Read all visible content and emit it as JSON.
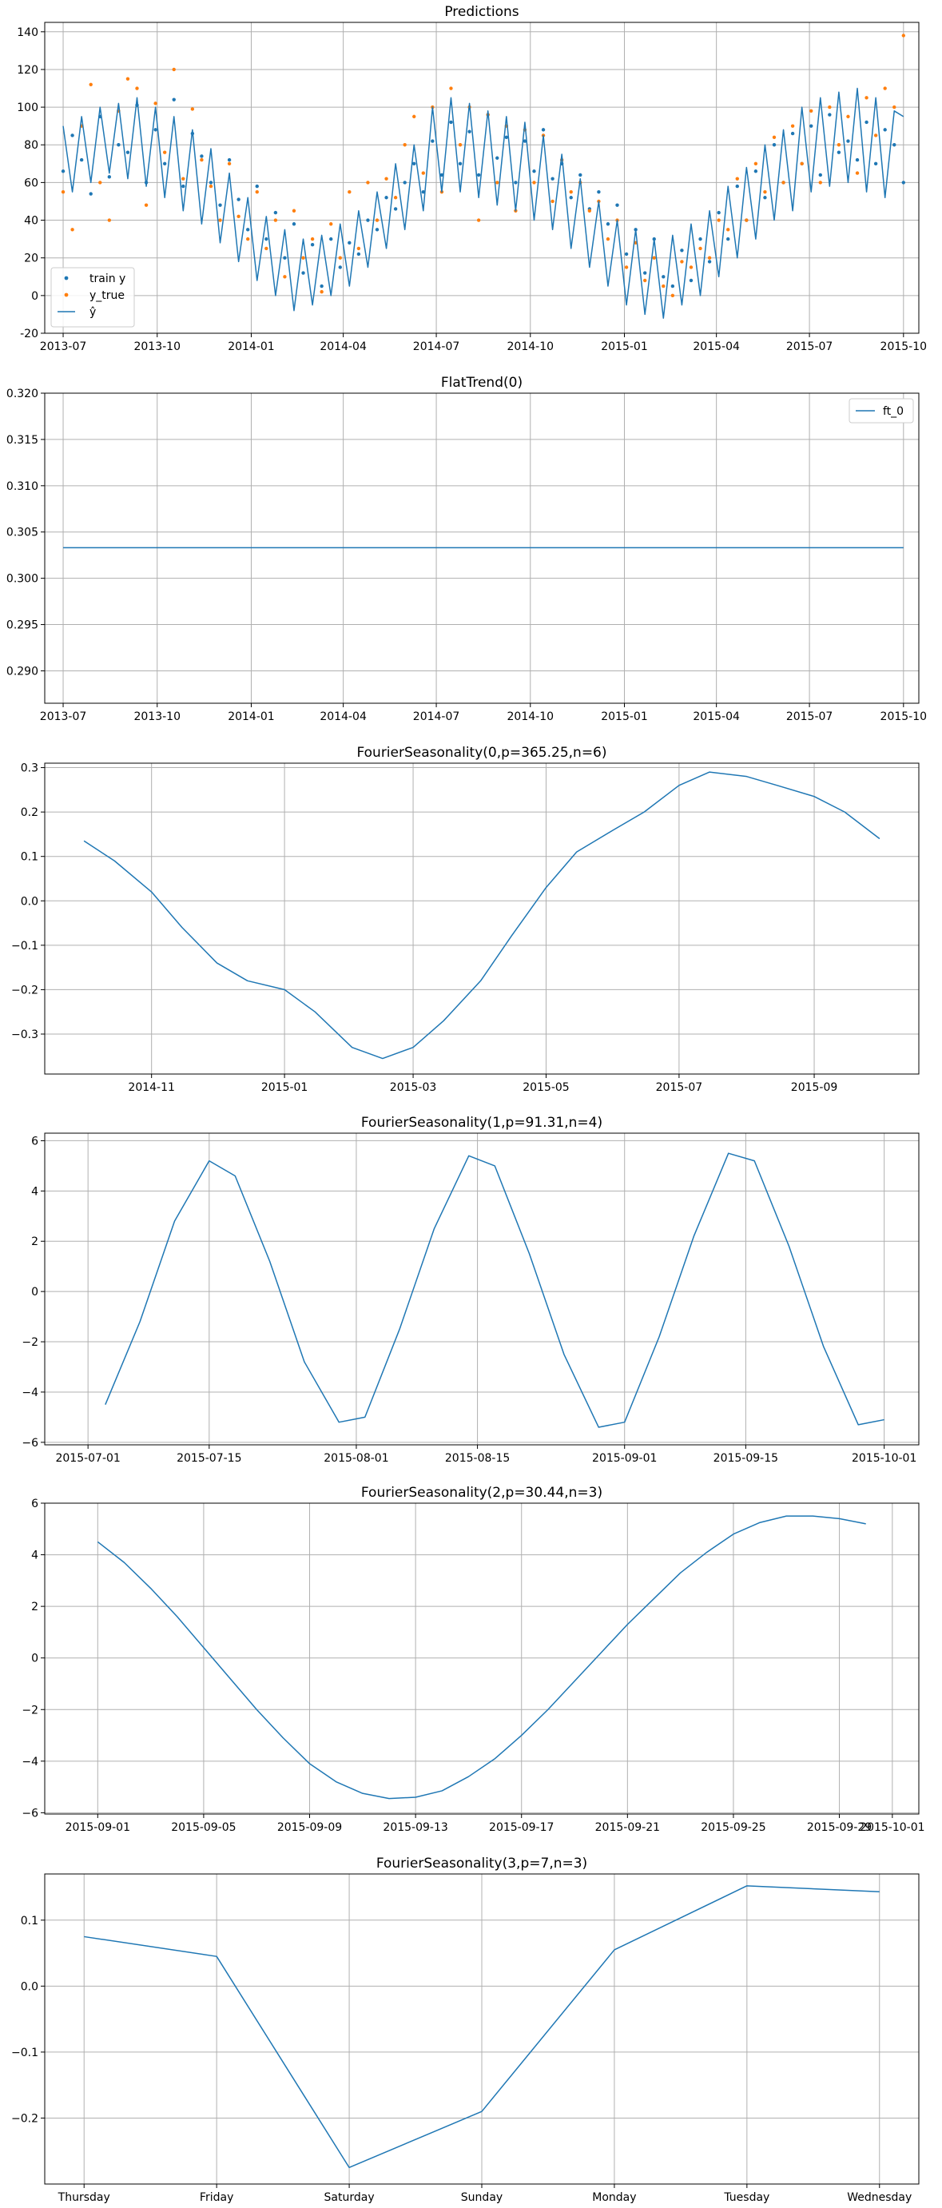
{
  "colors": {
    "line": "#1f77b4",
    "scatter_true": "#ff7f0e",
    "grid": "#b0b0b0",
    "axes": "#000000"
  },
  "chart_data": [
    {
      "type": "scatter",
      "title": "Predictions",
      "x_type": "date",
      "x_range": [
        "2013-06-13",
        "2015-10-16"
      ],
      "xticks": [
        "2013-07",
        "2013-10",
        "2014-01",
        "2014-04",
        "2014-07",
        "2014-10",
        "2015-01",
        "2015-04",
        "2015-07",
        "2015-10"
      ],
      "ylim": [
        -20,
        145
      ],
      "yticks": [
        -20,
        0,
        20,
        40,
        60,
        80,
        100,
        120,
        140
      ],
      "grid": true,
      "legend": "bottom-left",
      "series": [
        {
          "name": "train y",
          "kind": "points",
          "color": "#1f77b4",
          "x_start": "2013-07-01",
          "x_end": "2015-10-01",
          "y": [
            66,
            85,
            72,
            54,
            95,
            63,
            80,
            76,
            101,
            60,
            88,
            70,
            104,
            58,
            86,
            74,
            60,
            48,
            72,
            51,
            35,
            58,
            30,
            44,
            20,
            38,
            12,
            27,
            5,
            30,
            15,
            28,
            22,
            40,
            35,
            52,
            46,
            60,
            70,
            55,
            82,
            64,
            92,
            70,
            87,
            64,
            96,
            73,
            84,
            60,
            82,
            66,
            88,
            62,
            70,
            52,
            64,
            46,
            55,
            38,
            48,
            22,
            35,
            12,
            30,
            10,
            5,
            24,
            8,
            30,
            18,
            44,
            30,
            58,
            40,
            66,
            52,
            80,
            60,
            86,
            70,
            90,
            64,
            96,
            76,
            82,
            72,
            92,
            70,
            88,
            80,
            60
          ]
        },
        {
          "name": "y_true",
          "kind": "points",
          "color": "#ff7f0e",
          "x_start": "2013-07-01",
          "x_end": "2015-10-01",
          "y": [
            55,
            35,
            90,
            112,
            60,
            40,
            98,
            115,
            110,
            48,
            102,
            76,
            120,
            62,
            99,
            72,
            58,
            40,
            70,
            42,
            30,
            55,
            25,
            40,
            10,
            45,
            20,
            30,
            2,
            38,
            20,
            55,
            25,
            60,
            40,
            62,
            52,
            80,
            95,
            65,
            100,
            55,
            110,
            80,
            100,
            40,
            96,
            60,
            90,
            45,
            88,
            60,
            85,
            50,
            72,
            55,
            60,
            45,
            50,
            30,
            40,
            15,
            28,
            8,
            20,
            5,
            0,
            18,
            15,
            25,
            20,
            40,
            35,
            62,
            40,
            70,
            55,
            84,
            60,
            90,
            70,
            98,
            60,
            100,
            80,
            95,
            65,
            105,
            85,
            110,
            100,
            138
          ]
        },
        {
          "name": "ŷ",
          "kind": "line",
          "color": "#1f77b4",
          "x_start": "2013-07-01",
          "x_end": "2015-10-01",
          "y": [
            90,
            55,
            95,
            60,
            100,
            65,
            102,
            62,
            105,
            58,
            100,
            52,
            95,
            45,
            88,
            38,
            78,
            28,
            65,
            18,
            52,
            8,
            42,
            0,
            35,
            -8,
            30,
            -5,
            32,
            0,
            38,
            5,
            45,
            15,
            55,
            25,
            70,
            35,
            80,
            45,
            100,
            55,
            105,
            55,
            102,
            52,
            98,
            48,
            95,
            45,
            92,
            40,
            85,
            35,
            75,
            25,
            62,
            15,
            50,
            5,
            40,
            -5,
            35,
            -10,
            30,
            -12,
            32,
            -5,
            38,
            0,
            45,
            10,
            58,
            20,
            68,
            30,
            80,
            40,
            88,
            45,
            100,
            55,
            105,
            58,
            108,
            60,
            110,
            55,
            105,
            52,
            98,
            95
          ]
        }
      ]
    },
    {
      "type": "line",
      "title": "FlatTrend(0)",
      "x_type": "date",
      "x_range": [
        "2013-06-13",
        "2015-10-16"
      ],
      "xticks": [
        "2013-07",
        "2013-10",
        "2014-01",
        "2014-04",
        "2014-07",
        "2014-10",
        "2015-01",
        "2015-04",
        "2015-07",
        "2015-10"
      ],
      "ylim": [
        0.2865,
        0.32
      ],
      "yticks": [
        "0.290",
        "0.295",
        "0.300",
        "0.305",
        "0.310",
        "0.315",
        "0.320"
      ],
      "grid": true,
      "legend": "top-right",
      "series": [
        {
          "name": "ft_0",
          "x": [
            "2013-07-01",
            "2015-10-01"
          ],
          "y": [
            0.3033,
            0.3033
          ]
        }
      ]
    },
    {
      "type": "line",
      "title": "FourierSeasonality(0,p=365.25,n=6)",
      "x_type": "date",
      "x_range": [
        "2014-09-13",
        "2015-10-19"
      ],
      "xticks": [
        "2014-11",
        "2015-01",
        "2015-03",
        "2015-05",
        "2015-07",
        "2015-09"
      ],
      "ylim": [
        -0.39,
        0.31
      ],
      "yticks": [
        "−0.3",
        "−0.2",
        "−0.1",
        "0.0",
        "0.1",
        "0.2",
        "0.3"
      ],
      "grid": true,
      "legend": "none",
      "series": [
        {
          "x": [
            "2014-10-01",
            "2014-10-15",
            "2014-11-01",
            "2014-11-15",
            "2014-12-01",
            "2014-12-15",
            "2015-01-01",
            "2015-01-15",
            "2015-02-01",
            "2015-02-15",
            "2015-03-01",
            "2015-03-15",
            "2015-04-01",
            "2015-04-15",
            "2015-05-01",
            "2015-05-15",
            "2015-06-01",
            "2015-06-15",
            "2015-07-01",
            "2015-07-15",
            "2015-08-01",
            "2015-08-15",
            "2015-09-01",
            "2015-09-15",
            "2015-10-01"
          ],
          "y": [
            0.135,
            0.09,
            0.02,
            -0.06,
            -0.14,
            -0.18,
            -0.2,
            -0.25,
            -0.33,
            -0.355,
            -0.33,
            -0.27,
            -0.18,
            -0.08,
            0.03,
            0.11,
            0.16,
            0.2,
            0.26,
            0.29,
            0.28,
            0.26,
            0.235,
            0.2,
            0.14
          ]
        }
      ]
    },
    {
      "type": "line",
      "title": "FourierSeasonality(1,p=91.31,n=4)",
      "x_type": "date",
      "x_range": [
        "2015-06-26",
        "2015-10-05"
      ],
      "xticks": [
        "2015-07-01",
        "2015-07-15",
        "2015-08-01",
        "2015-08-15",
        "2015-09-01",
        "2015-09-15",
        "2015-10-01"
      ],
      "ylim": [
        -6.1,
        6.3
      ],
      "yticks": [
        "−6",
        "−4",
        "−2",
        "0",
        "2",
        "4",
        "6"
      ],
      "grid": true,
      "legend": "none",
      "series": [
        {
          "x": [
            "2015-07-03",
            "2015-07-07",
            "2015-07-11",
            "2015-07-15",
            "2015-07-18",
            "2015-07-22",
            "2015-07-26",
            "2015-07-30",
            "2015-08-02",
            "2015-08-06",
            "2015-08-10",
            "2015-08-14",
            "2015-08-17",
            "2015-08-21",
            "2015-08-25",
            "2015-08-29",
            "2015-09-01",
            "2015-09-05",
            "2015-09-09",
            "2015-09-13",
            "2015-09-16",
            "2015-09-20",
            "2015-09-24",
            "2015-09-28",
            "2015-10-01"
          ],
          "y": [
            -4.5,
            -1.2,
            2.8,
            5.2,
            4.6,
            1.2,
            -2.8,
            -5.2,
            -5.0,
            -1.5,
            2.5,
            5.4,
            5.0,
            1.5,
            -2.5,
            -5.4,
            -5.2,
            -1.8,
            2.2,
            5.5,
            5.2,
            1.8,
            -2.2,
            -5.3,
            -5.1
          ]
        }
      ]
    },
    {
      "type": "line",
      "title": "FourierSeasonality(2,p=30.44,n=3)",
      "x_type": "date",
      "x_range": [
        "2015-08-30",
        "2015-10-02"
      ],
      "xticks": [
        "2015-09-01",
        "2015-09-05",
        "2015-09-09",
        "2015-09-13",
        "2015-09-17",
        "2015-09-21",
        "2015-09-25",
        "2015-09-29",
        "2015-10-01"
      ],
      "ylim": [
        -6.05,
        6.0
      ],
      "yticks": [
        "−6",
        "−4",
        "−2",
        "0",
        "2",
        "4",
        "6"
      ],
      "grid": true,
      "legend": "none",
      "series": [
        {
          "x": [
            "2015-09-01",
            "2015-09-02",
            "2015-09-03",
            "2015-09-04",
            "2015-09-05",
            "2015-09-06",
            "2015-09-07",
            "2015-09-08",
            "2015-09-09",
            "2015-09-10",
            "2015-09-11",
            "2015-09-12",
            "2015-09-13",
            "2015-09-14",
            "2015-09-15",
            "2015-09-16",
            "2015-09-17",
            "2015-09-18",
            "2015-09-19",
            "2015-09-20",
            "2015-09-21",
            "2015-09-22",
            "2015-09-23",
            "2015-09-24",
            "2015-09-25",
            "2015-09-26",
            "2015-09-27",
            "2015-09-28",
            "2015-09-29",
            "2015-09-30"
          ],
          "y": [
            4.5,
            3.7,
            2.7,
            1.6,
            0.4,
            -0.8,
            -2.0,
            -3.1,
            -4.1,
            -4.8,
            -5.25,
            -5.45,
            -5.4,
            -5.15,
            -4.6,
            -3.9,
            -3.0,
            -2.0,
            -0.9,
            0.2,
            1.3,
            2.3,
            3.3,
            4.1,
            4.8,
            5.25,
            5.5,
            5.5,
            5.4,
            5.2
          ]
        }
      ]
    },
    {
      "type": "line",
      "title": "FourierSeasonality(3,p=7,n=3)",
      "categories": [
        "Thursday",
        "Friday",
        "Saturday",
        "Sunday",
        "Monday",
        "Tuesday",
        "Wednesday"
      ],
      "ylim": [
        -0.3,
        0.17
      ],
      "yticks": [
        "−0.2",
        "−0.1",
        "0.0",
        "0.1"
      ],
      "grid": true,
      "legend": "none",
      "series": [
        {
          "values": [
            0.075,
            0.045,
            -0.275,
            -0.19,
            0.055,
            0.152,
            0.143
          ]
        }
      ]
    }
  ]
}
